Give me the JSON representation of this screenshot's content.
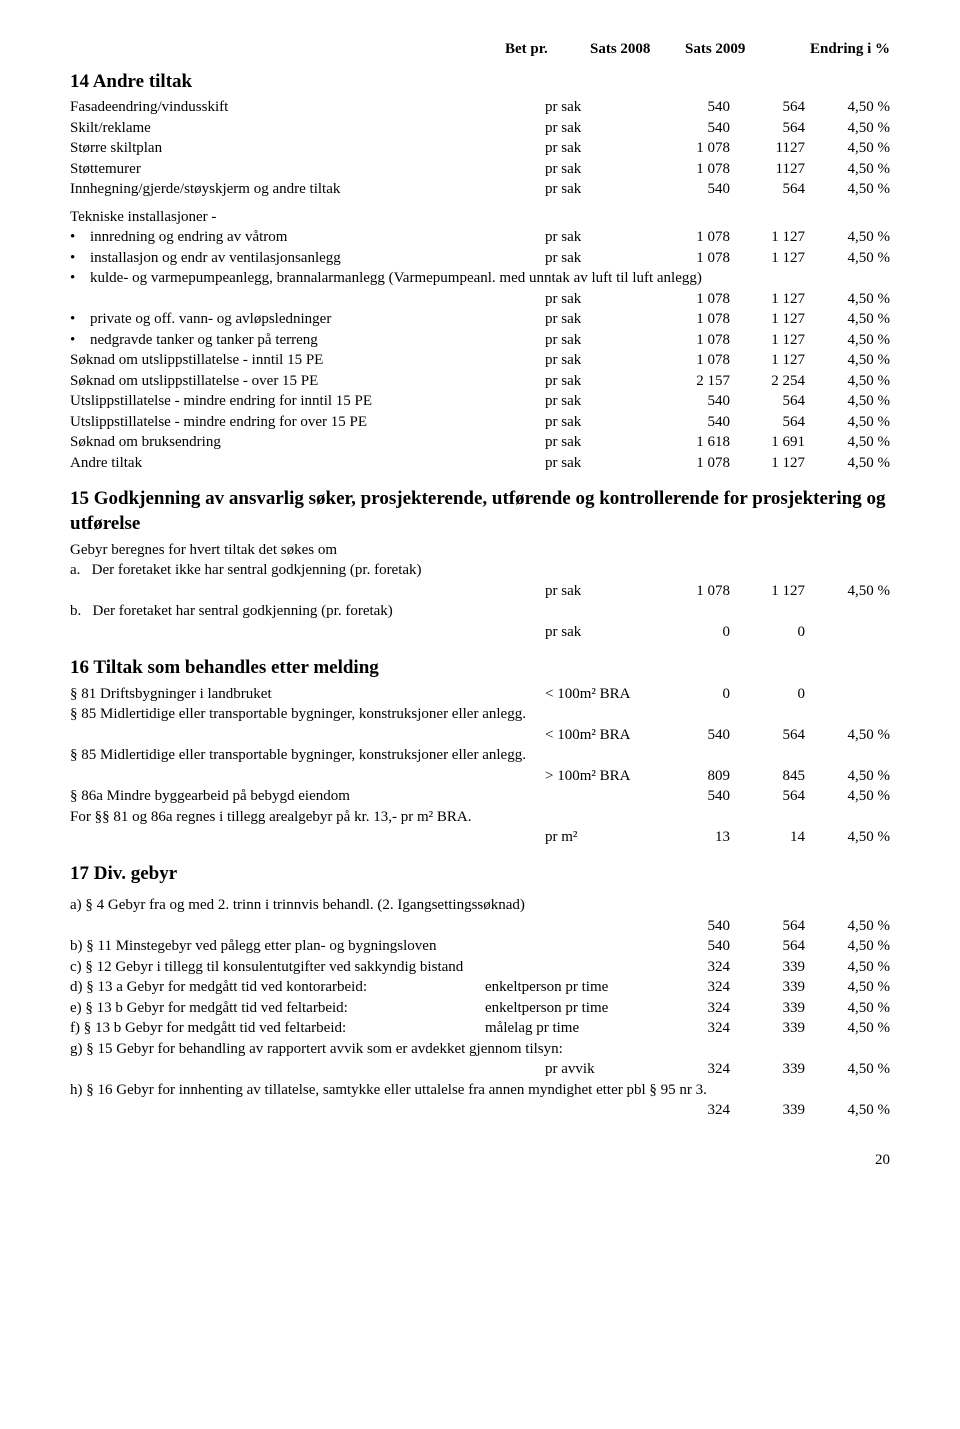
{
  "header": {
    "bet": "Bet pr.",
    "s08": "Sats 2008",
    "s09": "Sats 2009",
    "end": "Endring i %"
  },
  "s14": {
    "title": "14 Andre tiltak",
    "rows": [
      {
        "label": "Fasadeendring/vindusskift",
        "unit": "pr sak",
        "v08": "540",
        "v09": "564",
        "pct": "4,50 %"
      },
      {
        "label": "Skilt/reklame",
        "unit": "pr sak",
        "v08": "540",
        "v09": "564",
        "pct": "4,50 %"
      },
      {
        "label": "Større skiltplan",
        "unit": "pr sak",
        "v08": "1 078",
        "v09": "1127",
        "pct": "4,50 %"
      },
      {
        "label": "Støttemurer",
        "unit": "pr sak",
        "v08": "1 078",
        "v09": "1127",
        "pct": "4,50 %"
      },
      {
        "label": "Innhegning/gjerde/støyskjerm og andre tiltak",
        "unit": "pr sak",
        "v08": "540",
        "v09": "564",
        "pct": "4,50 %"
      }
    ],
    "tekniske_title": "Tekniske installasjoner -",
    "tekniske": [
      {
        "label": "innredning og endring av våtrom",
        "unit": "pr sak",
        "v08": "1 078",
        "v09": "1 127",
        "pct": "4,50 %"
      },
      {
        "label": "installasjon og endr av ventilasjonsanlegg",
        "unit": "pr sak",
        "v08": "1 078",
        "v09": "1 127",
        "pct": "4,50 %"
      }
    ],
    "kulde1": "kulde- og varmepumpeanlegg, brannalarmanlegg (Varmepumpeanl. med unntak av luft til luft anlegg)",
    "kulde2": {
      "unit": "pr sak",
      "v08": "1 078",
      "v09": "1 127",
      "pct": "4,50 %"
    },
    "tekniske2": [
      {
        "label": "private og off. vann- og avløpsledninger",
        "unit": "pr sak",
        "v08": "1 078",
        "v09": "1 127",
        "pct": "4,50 %"
      },
      {
        "label": "nedgravde tanker og tanker på terreng",
        "unit": "pr sak",
        "v08": "1 078",
        "v09": "1 127",
        "pct": "4,50 %"
      }
    ],
    "rows2": [
      {
        "label": "Søknad om utslippstillatelse - inntil 15 PE",
        "unit": "pr sak",
        "v08": "1 078",
        "v09": "1 127",
        "pct": "4,50 %"
      },
      {
        "label": "Søknad om utslippstillatelse - over 15 PE",
        "unit": "pr sak",
        "v08": "2 157",
        "v09": "2 254",
        "pct": "4,50 %"
      },
      {
        "label": "Utslippstillatelse - mindre endring for inntil 15 PE",
        "unit": "pr sak",
        "v08": "540",
        "v09": "564",
        "pct": "4,50 %"
      },
      {
        "label": "Utslippstillatelse - mindre endring for over 15 PE",
        "unit": "pr sak",
        "v08": "540",
        "v09": "564",
        "pct": "4,50 %"
      },
      {
        "label": "Søknad om bruksendring",
        "unit": "pr sak",
        "v08": "1 618",
        "v09": "1 691",
        "pct": "4,50 %"
      },
      {
        "label": "Andre tiltak",
        "unit": "pr sak",
        "v08": "1 078",
        "v09": "1 127",
        "pct": "4,50 %"
      }
    ]
  },
  "s15": {
    "title": "15 Godkjenning av ansvarlig søker, prosjekterende, utførende og kontrollerende for prosjektering og utførelse",
    "intro": "Gebyr beregnes for hvert tiltak det søkes om",
    "a_lbl": "a.",
    "a_txt": "Der foretaket ikke har sentral godkjenning (pr. foretak)",
    "a": {
      "unit": "pr sak",
      "v08": "1 078",
      "v09": "1 127",
      "pct": "4,50 %"
    },
    "b_lbl": "b.",
    "b_txt": "Der foretaket har sentral godkjenning (pr. foretak)",
    "b": {
      "unit": "pr sak",
      "v08": "0",
      "v09": "0",
      "pct": ""
    }
  },
  "s16": {
    "title": "16 Tiltak som behandles etter melding",
    "r81": {
      "label": "§ 81  Driftsbygninger i landbruket",
      "unit": "< 100m² BRA",
      "v08": "0",
      "v09": "0",
      "pct": ""
    },
    "r85a_txt": "§ 85  Midlertidige eller transportable bygninger, konstruksjoner eller anlegg.",
    "r85a": {
      "unit": "< 100m² BRA",
      "v08": "540",
      "v09": "564",
      "pct": "4,50 %"
    },
    "r85b_txt": "§ 85  Midlertidige eller transportable bygninger, konstruksjoner eller anlegg.",
    "r85b": {
      "unit": "> 100m² BRA",
      "v08": "809",
      "v09": "845",
      "pct": "4,50 %"
    },
    "r86a": {
      "label": "§ 86a Mindre byggearbeid på bebygd eiendom",
      "unit": "",
      "v08": "540",
      "v09": "564",
      "pct": "4,50 %"
    },
    "areal_txt": "For §§ 81 og 86a regnes i tillegg arealgebyr på kr. 13,- pr m² BRA.",
    "areal": {
      "unit": "pr m²",
      "v08": "13",
      "v09": "14",
      "pct": "4,50 %"
    }
  },
  "s17": {
    "title": "17 Div. gebyr",
    "a_txt": "a) § 4 Gebyr fra og med 2. trinn i trinnvis behandl. (2. Igangsettingssøknad)",
    "a": {
      "v08": "540",
      "v09": "564",
      "pct": "4,50 %"
    },
    "rows": [
      {
        "label": "b) § 11 Minstegebyr ved pålegg etter plan- og bygningsloven",
        "v08": "540",
        "v09": "564",
        "pct": "4,50 %"
      },
      {
        "label": "c) § 12 Gebyr i tillegg til konsulentutgifter ved sakkyndig bistand",
        "v08": "324",
        "v09": "339",
        "pct": "4,50 %"
      },
      {
        "label": "d) § 13 a Gebyr for medgått tid ved kontorarbeid:",
        "unit": "enkeltperson pr time",
        "v08": "324",
        "v09": "339",
        "pct": "4,50 %"
      },
      {
        "label": "e) § 13 b Gebyr for medgått tid ved feltarbeid:",
        "unit": "enkeltperson pr time",
        "v08": "324",
        "v09": "339",
        "pct": "4,50 %"
      },
      {
        "label": "f)  § 13 b Gebyr for medgått tid ved feltarbeid:",
        "unit": "målelag pr time",
        "v08": "324",
        "v09": "339",
        "pct": "4,50 %"
      }
    ],
    "g_txt": "g) § 15 Gebyr for behandling av rapportert avvik som er avdekket gjennom tilsyn:",
    "g": {
      "unit": "pr avvik",
      "v08": "324",
      "v09": "339",
      "pct": "4,50 %"
    },
    "h_txt": "h) § 16 Gebyr for innhenting av tillatelse, samtykke eller uttalelse fra annen myndighet etter pbl § 95 nr 3.",
    "h": {
      "v08": "324",
      "v09": "339",
      "pct": "4,50 %"
    }
  },
  "page": "20"
}
